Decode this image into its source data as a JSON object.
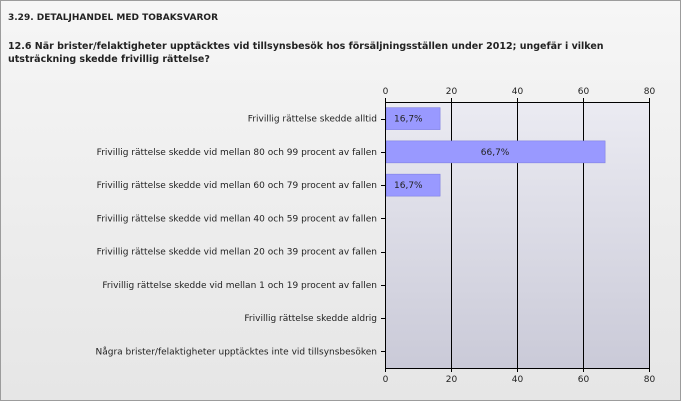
{
  "header": {
    "section": "3.29. DETALJHANDEL MED TOBAKSVAROR",
    "question": "12.6 När brister/felaktigheter upptäcktes vid tillsynsbesök hos försäljningsställen under 2012; ungefär i vilken utsträckning skedde frivillig rättelse?"
  },
  "chart_data": {
    "type": "bar",
    "orientation": "horizontal",
    "categories": [
      "Frivillig rättelse skedde alltid",
      "Frivillig rättelse skedde vid mellan 80 och 99 procent av fallen",
      "Frivillig rättelse skedde vid mellan 60 och 79 procent av fallen",
      "Frivillig rättelse skedde vid mellan 40 och 59 procent av fallen",
      "Frivillig rättelse skedde vid mellan 20 och 39 procent av fallen",
      "Frivillig rättelse skedde vid mellan 1 och 19 procent av fallen",
      "Frivillig rättelse skedde aldrig",
      "Några brister/felaktigheter upptäcktes inte vid tillsynsbesöken"
    ],
    "values": [
      16.7,
      66.7,
      16.7,
      0,
      0,
      0,
      0,
      0
    ],
    "data_labels": [
      "16,7%",
      "66,7%",
      "16,7%",
      "",
      "",
      "",
      "",
      ""
    ],
    "xlim": [
      0,
      80
    ],
    "xticks": [
      0,
      20,
      40,
      60,
      80
    ],
    "grid": true,
    "colors": {
      "bar": "#9999ff",
      "bar_edge": "#7777dd",
      "plot_bg_top": "#ebebf2",
      "plot_bg_bottom": "#cacad8",
      "grid": "#000000"
    }
  }
}
